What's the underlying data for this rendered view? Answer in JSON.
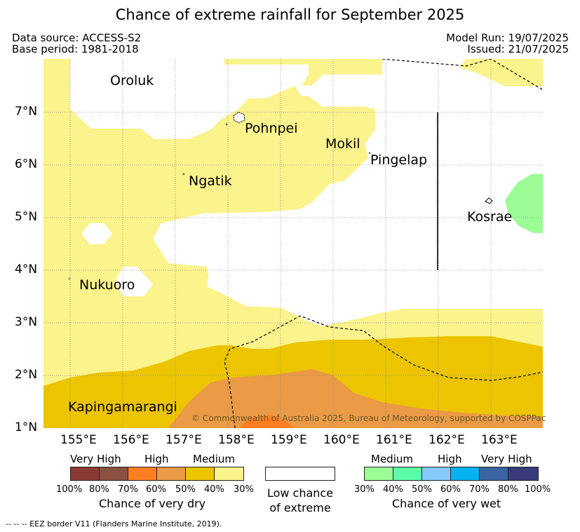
{
  "title": "Chance of extreme rainfall for September 2025",
  "meta": {
    "data_source": "Data source: ACCESS-S2",
    "base_period": "Base period: 1981-2018",
    "model_run": "Model Run: 19/07/2025",
    "issued": "Issued: 21/07/2025"
  },
  "map": {
    "lon_ticks": [
      "155°E",
      "156°E",
      "157°E",
      "158°E",
      "159°E",
      "160°E",
      "161°E",
      "162°E",
      "163°E"
    ],
    "lat_ticks": [
      "1°N",
      "2°N",
      "3°N",
      "4°N",
      "5°N",
      "6°N",
      "7°N"
    ],
    "places": [
      "Oroluk",
      "Pohnpei",
      "Mokil",
      "Pingelap",
      "Ngatik",
      "Kosrae",
      "Nukuoro",
      "Kapingamarangi"
    ],
    "copyright": "© Commonwealth of Australia 2025, Bureau of Meteorology, supported by COSPPac",
    "colors": {
      "dry_30_40": "#fbf38c",
      "dry_40_50": "#ecc400",
      "dry_50_60": "#eb9a45",
      "dry_60_70": "#fe7f22",
      "dry_70_80": "#8a5140",
      "dry_80_100": "#8b3a33",
      "wet_30_40": "#9cfc96",
      "wet_40_50": "#5bfca8",
      "wet_50_60": "#84cafb",
      "wet_60_70": "#07b2f2",
      "wet_70_80": "#3a63a2",
      "wet_80_100": "#3a3a7a"
    }
  },
  "legend": {
    "dry": {
      "headers": [
        "Very High",
        "High",
        "Medium"
      ],
      "percents": [
        "100%",
        "80%",
        "70%",
        "60%",
        "50%",
        "40%",
        "30%"
      ],
      "caption": "Chance of very dry"
    },
    "low": {
      "line1": "Low chance",
      "line2": "of extreme"
    },
    "wet": {
      "headers": [
        "Medium",
        "High",
        "Very High"
      ],
      "percents": [
        "30%",
        "40%",
        "50%",
        "60%",
        "70%",
        "80%",
        "100%"
      ],
      "caption": "Chance of very wet"
    }
  },
  "footnote": "--  --  -- EEZ border V11 (Flanders Marine Institute, 2019)."
}
